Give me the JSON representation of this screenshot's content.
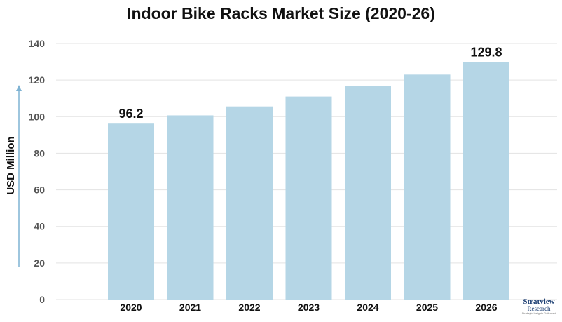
{
  "chart_data": {
    "type": "bar",
    "title": "Indoor Bike Racks Market Size (2020-26)",
    "xlabel": "",
    "ylabel": "USD Million",
    "categories": [
      "2020",
      "2021",
      "2022",
      "2023",
      "2024",
      "2025",
      "2026"
    ],
    "values": [
      96.2,
      100.7,
      105.6,
      111.0,
      116.7,
      123.0,
      129.8
    ],
    "data_labels": [
      {
        "category": "2020",
        "text": "96.2"
      },
      {
        "category": "2026",
        "text": "129.8"
      }
    ],
    "ylim": [
      0,
      140
    ],
    "yticks": [
      0,
      20,
      40,
      60,
      80,
      100,
      120,
      140
    ],
    "grid": true,
    "bar_color": "#b5d6e6",
    "grid_color": "#e3e3e3",
    "axis_arrow_color": "#7fb3d3"
  },
  "logo": {
    "line1": "Stratview",
    "line2": "Research",
    "line3": "Strategic Insights Delivered"
  }
}
